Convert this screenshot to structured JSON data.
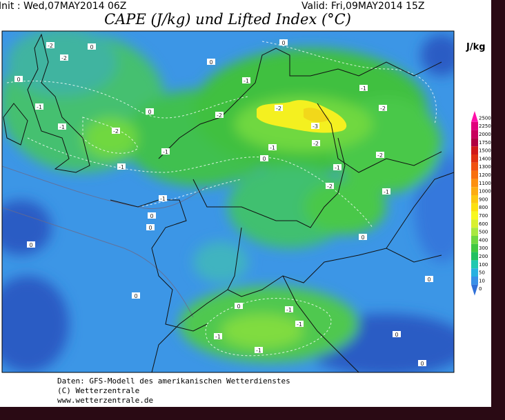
{
  "header": {
    "init": "Init : Wed,07MAY2014 06Z",
    "valid": "Valid: Fri,09MAY2014 15Z",
    "title": "CAPE (J/kg) und Lifted Index (°C)"
  },
  "colorbar": {
    "unit": "J/kg",
    "levels": [
      {
        "label": "2500",
        "color": "#ff10a8"
      },
      {
        "label": "2250",
        "color": "#e0007c"
      },
      {
        "label": "2000",
        "color": "#c8005c"
      },
      {
        "label": "1750",
        "color": "#b00040"
      },
      {
        "label": "1500",
        "color": "#d01818"
      },
      {
        "label": "1400",
        "color": "#e03010"
      },
      {
        "label": "1300",
        "color": "#f05010"
      },
      {
        "label": "1200",
        "color": "#f87010"
      },
      {
        "label": "1100",
        "color": "#fc9010"
      },
      {
        "label": "1000",
        "color": "#fcac10"
      },
      {
        "label": "900",
        "color": "#fcc810"
      },
      {
        "label": "800",
        "color": "#fce010"
      },
      {
        "label": "700",
        "color": "#f8f820"
      },
      {
        "label": "600",
        "color": "#d8f030"
      },
      {
        "label": "500",
        "color": "#a8e840"
      },
      {
        "label": "400",
        "color": "#70d840"
      },
      {
        "label": "300",
        "color": "#40c840"
      },
      {
        "label": "200",
        "color": "#20c060"
      },
      {
        "label": "100",
        "color": "#20c8b0"
      },
      {
        "label": "50",
        "color": "#28b0e0"
      },
      {
        "label": "10",
        "color": "#3890e8"
      },
      {
        "label": "0",
        "color": "#3070d8"
      }
    ]
  },
  "map_labels": [
    "-2",
    "-2",
    "0",
    "0",
    "-1",
    "0",
    "-1",
    "-2",
    "-1",
    "-1",
    "-1",
    "0",
    "0",
    "-2",
    "-1",
    "0",
    "-2",
    "-3",
    "-1",
    "-2",
    "0",
    "-1",
    "-2",
    "-1",
    "-2",
    "-2",
    "-1",
    "0",
    "0",
    "0",
    "0",
    "0",
    "-1",
    "-1",
    "-1",
    "-1",
    "0",
    "0",
    "0"
  ],
  "footer": {
    "line1": "Daten: GFS-Modell des amerikanischen Wetterdienstes",
    "line2": "(C) Wetterzentrale",
    "line3": "www.wetterzentrale.de"
  }
}
